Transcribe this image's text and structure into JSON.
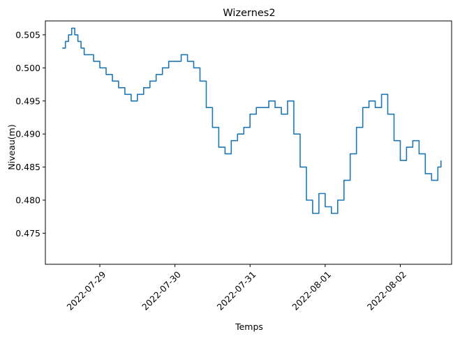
{
  "chart_data": {
    "type": "line",
    "title": "Wizernes2",
    "xlabel": "Temps",
    "ylabel": "Niveau(m)",
    "x_ticks": [
      "2022-07-29",
      "2022-07-30",
      "2022-07-31",
      "2022-08-01",
      "2022-08-02"
    ],
    "y_ticks": [
      "0.475",
      "0.480",
      "0.485",
      "0.490",
      "0.495",
      "0.500",
      "0.505"
    ],
    "xlim": [
      "2022-07-28 06:36",
      "2022-08-02 16:24"
    ],
    "ylim": [
      0.4703,
      0.5071
    ],
    "grid": false,
    "line_color": "#1f77b4",
    "series": [
      {
        "x": [
          "2022-07-28 12:00",
          "2022-07-28 13:00",
          "2022-07-28 14:00",
          "2022-07-28 15:00",
          "2022-07-28 16:00",
          "2022-07-28 17:00",
          "2022-07-28 18:00",
          "2022-07-28 19:00",
          "2022-07-28 20:00",
          "2022-07-28 22:00",
          "2022-07-29 00:00",
          "2022-07-29 02:00",
          "2022-07-29 04:00",
          "2022-07-29 06:00",
          "2022-07-29 08:00",
          "2022-07-29 10:00",
          "2022-07-29 12:00",
          "2022-07-29 14:00",
          "2022-07-29 16:00",
          "2022-07-29 18:00",
          "2022-07-29 20:00",
          "2022-07-29 22:00",
          "2022-07-30 00:00",
          "2022-07-30 02:00",
          "2022-07-30 04:00",
          "2022-07-30 06:00",
          "2022-07-30 08:00",
          "2022-07-30 10:00",
          "2022-07-30 12:00",
          "2022-07-30 14:00",
          "2022-07-30 16:00",
          "2022-07-30 18:00",
          "2022-07-30 20:00",
          "2022-07-30 22:00",
          "2022-07-31 00:00",
          "2022-07-31 02:00",
          "2022-07-31 04:00",
          "2022-07-31 06:00",
          "2022-07-31 08:00",
          "2022-07-31 10:00",
          "2022-07-31 12:00",
          "2022-07-31 14:00",
          "2022-07-31 16:00",
          "2022-07-31 18:00",
          "2022-07-31 20:00",
          "2022-07-31 22:00",
          "2022-08-01 00:00",
          "2022-08-01 02:00",
          "2022-08-01 04:00",
          "2022-08-01 06:00",
          "2022-08-01 08:00",
          "2022-08-01 10:00",
          "2022-08-01 12:00",
          "2022-08-01 14:00",
          "2022-08-01 16:00",
          "2022-08-01 18:00",
          "2022-08-01 20:00",
          "2022-08-01 22:00",
          "2022-08-02 00:00",
          "2022-08-02 02:00",
          "2022-08-02 04:00",
          "2022-08-02 06:00",
          "2022-08-02 08:00",
          "2022-08-02 10:00",
          "2022-08-02 12:00",
          "2022-08-02 13:00"
        ],
        "values": [
          0.503,
          0.504,
          0.505,
          0.506,
          0.505,
          0.504,
          0.503,
          0.502,
          0.502,
          0.501,
          0.5,
          0.499,
          0.498,
          0.497,
          0.496,
          0.495,
          0.496,
          0.497,
          0.498,
          0.499,
          0.5,
          0.501,
          0.501,
          0.502,
          0.501,
          0.5,
          0.498,
          0.494,
          0.491,
          0.488,
          0.487,
          0.489,
          0.49,
          0.491,
          0.493,
          0.494,
          0.494,
          0.495,
          0.494,
          0.493,
          0.495,
          0.49,
          0.485,
          0.48,
          0.478,
          0.481,
          0.479,
          0.478,
          0.48,
          0.483,
          0.487,
          0.491,
          0.494,
          0.495,
          0.494,
          0.496,
          0.493,
          0.489,
          0.486,
          0.488,
          0.489,
          0.487,
          0.484,
          0.483,
          0.485,
          0.486
        ]
      }
    ]
  }
}
